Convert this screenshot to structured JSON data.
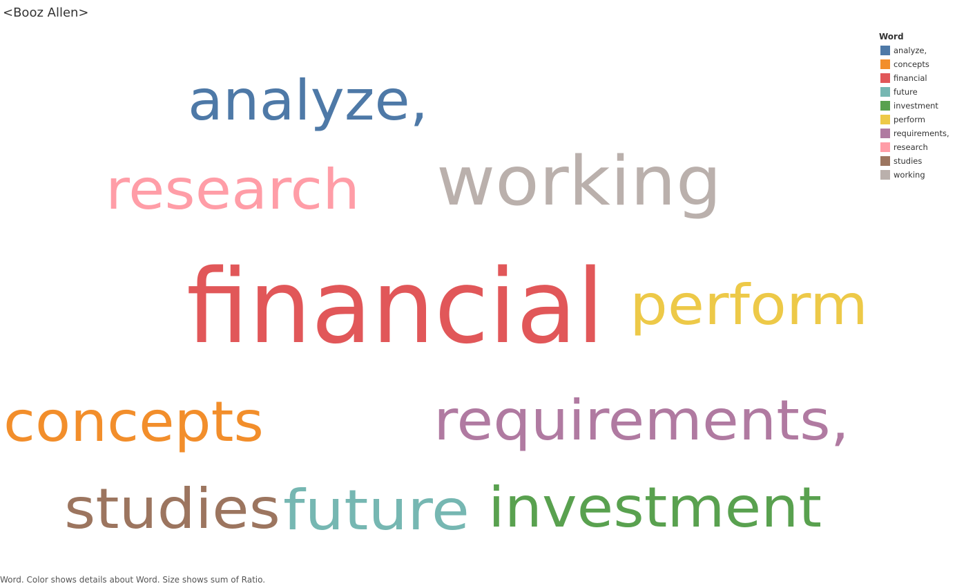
{
  "title": "<Booz Allen>",
  "caption": "Word.  Color shows details about Word.  Size shows sum of Ratio.",
  "legend": {
    "title": "Word",
    "items": [
      {
        "label": "analyze,",
        "color": "#4E79A7"
      },
      {
        "label": "concepts",
        "color": "#F28E2B"
      },
      {
        "label": "financial",
        "color": "#E15759"
      },
      {
        "label": "future",
        "color": "#76B7B2"
      },
      {
        "label": "investment",
        "color": "#59A14F"
      },
      {
        "label": "perform",
        "color": "#EDC948"
      },
      {
        "label": "requirements,",
        "color": "#B07AA1"
      },
      {
        "label": "research",
        "color": "#FF9DA7"
      },
      {
        "label": "studies",
        "color": "#9C755F"
      },
      {
        "label": "working",
        "color": "#BAB0AC"
      }
    ]
  },
  "chart_data": {
    "type": "word_cloud",
    "size_field": "Ratio",
    "color_field": "Word",
    "words": [
      {
        "word": "financial",
        "relative_size": 1.0,
        "color": "#E15759"
      },
      {
        "word": "working",
        "relative_size": 0.65,
        "color": "#BAB0AC"
      },
      {
        "word": "analyze,",
        "relative_size": 0.55,
        "color": "#4E79A7"
      },
      {
        "word": "research",
        "relative_size": 0.55,
        "color": "#FF9DA7"
      },
      {
        "word": "perform",
        "relative_size": 0.55,
        "color": "#EDC948"
      },
      {
        "word": "concepts",
        "relative_size": 0.55,
        "color": "#F28E2B"
      },
      {
        "word": "requirements,",
        "relative_size": 0.55,
        "color": "#B07AA1"
      },
      {
        "word": "studies",
        "relative_size": 0.55,
        "color": "#9C755F"
      },
      {
        "word": "future",
        "relative_size": 0.55,
        "color": "#76B7B2"
      },
      {
        "word": "investment",
        "relative_size": 0.55,
        "color": "#59A14F"
      }
    ]
  }
}
